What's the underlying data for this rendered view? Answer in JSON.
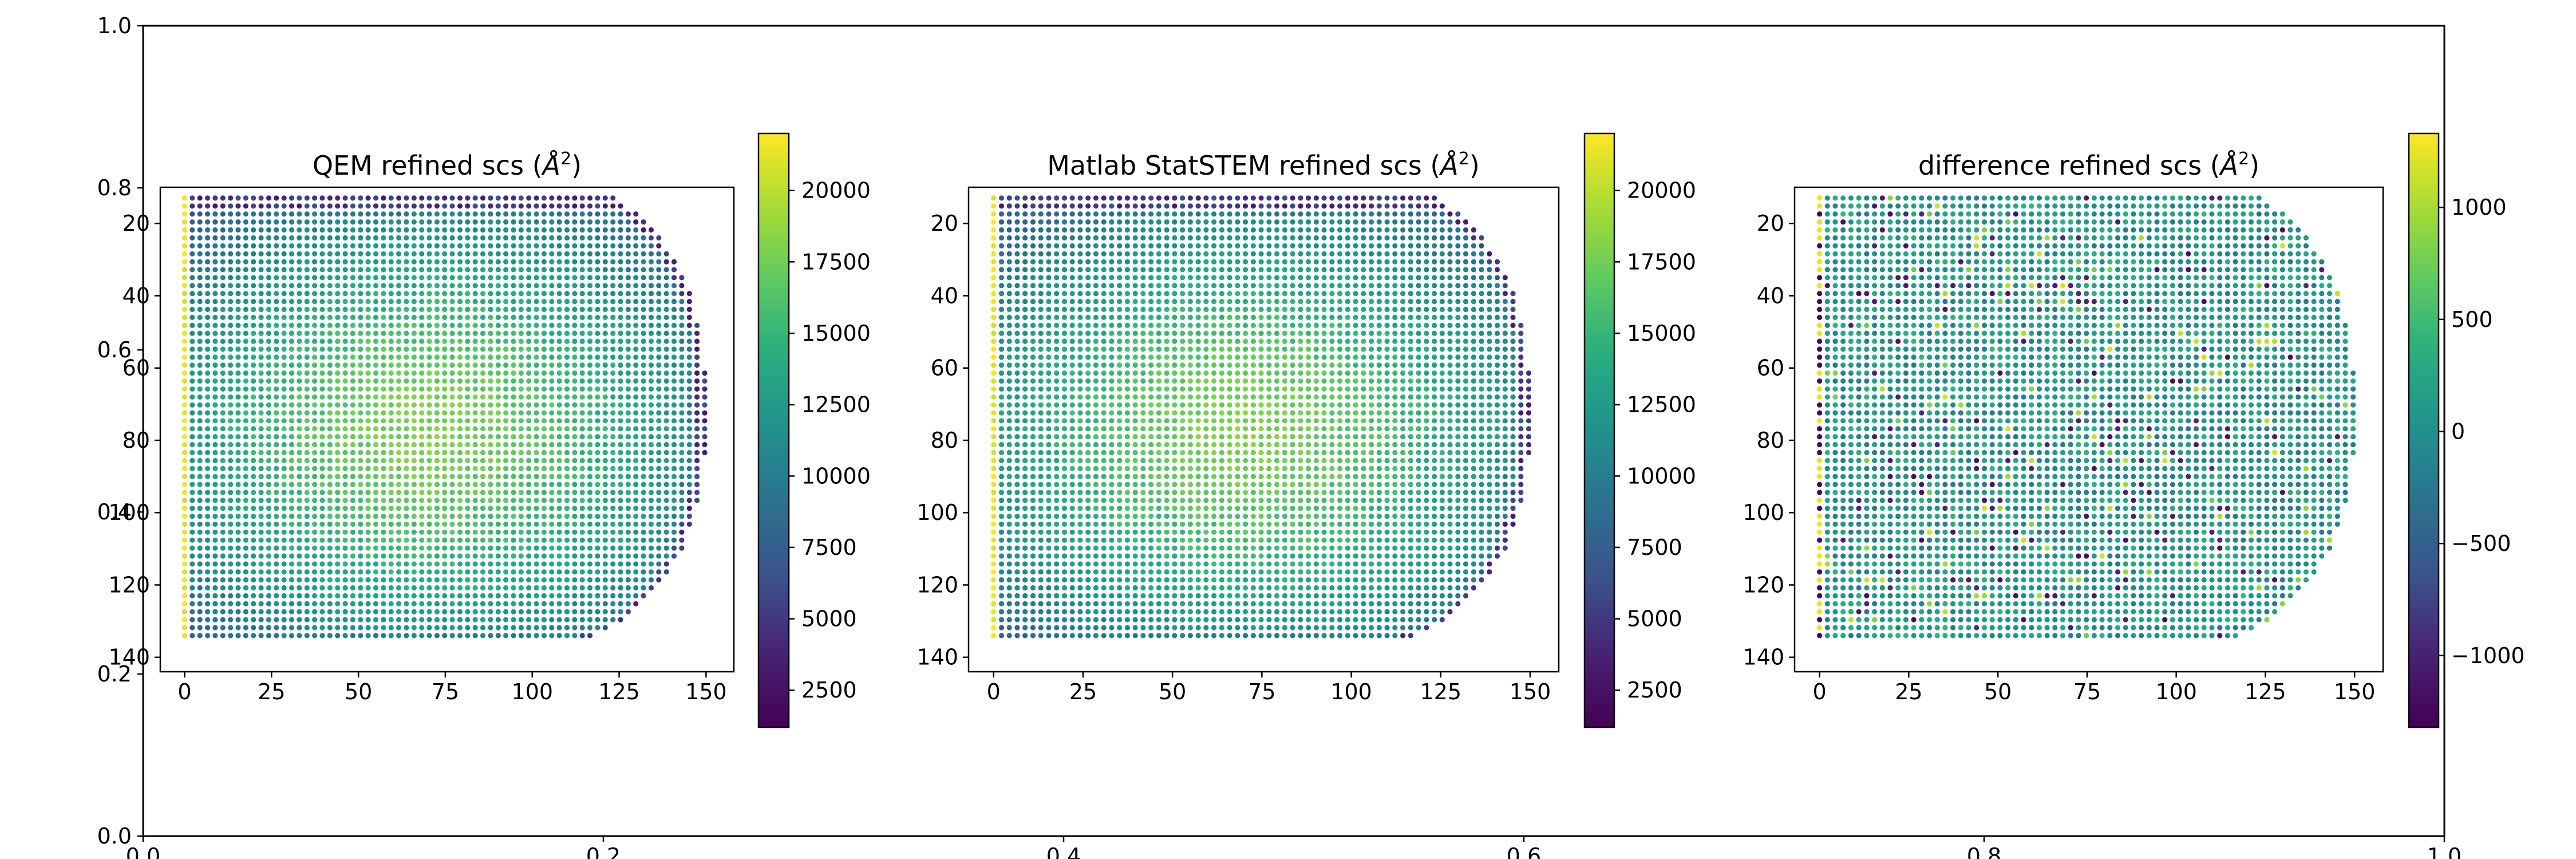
{
  "figure": {
    "background_axes": {
      "x_ticks": [
        "0.0",
        "0.2",
        "0.4",
        "0.6",
        "0.8",
        "1.0"
      ],
      "y_ticks": [
        "0.0",
        "0.2",
        "0.4",
        "0.6",
        "0.8",
        "1.0"
      ]
    }
  },
  "chart_data": [
    {
      "type": "scatter",
      "title": "QEM refined scs (Å²)",
      "title_text": "QEM refined scs (",
      "title_unit": "Å",
      "title_sup": "2",
      "title_close": ")",
      "xlim": [
        -7,
        158
      ],
      "ylim": [
        144,
        10
      ],
      "x_ticks": [
        0,
        25,
        50,
        75,
        100,
        125,
        150
      ],
      "y_ticks": [
        20,
        40,
        60,
        80,
        100,
        120,
        140
      ],
      "colorbar": {
        "range": [
          1200,
          22000
        ],
        "ticks": [
          2500,
          5000,
          7500,
          10000,
          12500,
          15000,
          17500,
          20000
        ],
        "colormap": "viridis"
      },
      "left_edge_bright": true,
      "center_value": 18000,
      "edge_value": 3000
    },
    {
      "type": "scatter",
      "title": "Matlab StatSTEM refined scs (Å²)",
      "title_text": "Matlab StatSTEM refined scs (",
      "title_unit": "Å",
      "title_sup": "2",
      "title_close": ")",
      "xlim": [
        -7,
        158
      ],
      "ylim": [
        144,
        10
      ],
      "x_ticks": [
        0,
        25,
        50,
        75,
        100,
        125,
        150
      ],
      "y_ticks": [
        20,
        40,
        60,
        80,
        100,
        120,
        140
      ],
      "colorbar": {
        "range": [
          1200,
          22000
        ],
        "ticks": [
          2500,
          5000,
          7500,
          10000,
          12500,
          15000,
          17500,
          20000
        ],
        "colormap": "viridis"
      },
      "left_edge_bright": true,
      "center_value": 18000,
      "edge_value": 3000
    },
    {
      "type": "scatter",
      "title": "difference refined scs (Å²)",
      "title_text": "difference refined scs (",
      "title_unit": "Å",
      "title_sup": "2",
      "title_close": ")",
      "xlim": [
        -7,
        158
      ],
      "ylim": [
        144,
        10
      ],
      "x_ticks": [
        0,
        25,
        50,
        75,
        100,
        125,
        150
      ],
      "y_ticks": [
        20,
        40,
        60,
        80,
        100,
        120,
        140
      ],
      "colorbar": {
        "range": [
          -1320,
          1330
        ],
        "ticks": [
          -1000,
          -500,
          0,
          500,
          1000
        ],
        "colormap": "viridis"
      },
      "left_edge_bright": false,
      "center_value": 80,
      "edge_value": 80
    }
  ],
  "colors": {
    "viridis_low": "#440154",
    "viridis_mid": "#21918c",
    "viridis_high": "#fde725"
  }
}
